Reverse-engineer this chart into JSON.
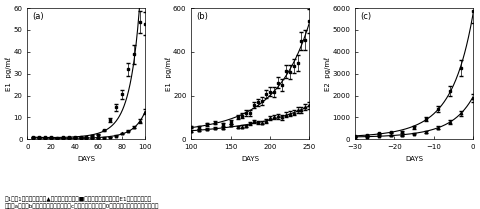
{
  "title_caption": "図1　単胎妊娠牛（▲）と双胎妊娠牛（■）の血中エストロン（E1）の濃度推移。",
  "caption2": "（a），（b）の横軸は娠娠日数　（c）の横軸は分娩日を0日とした分娩前の日数を示す。",
  "panel_a": {
    "label": "(a)",
    "xlabel": "DAYS",
    "ylabel": "E1  pg/mℓ",
    "xlim": [
      0,
      100
    ],
    "ylim": [
      0,
      60
    ],
    "xticks": [
      0,
      20,
      40,
      60,
      80,
      100
    ],
    "yticks": [
      0,
      10,
      20,
      30,
      40,
      50,
      60
    ],
    "twin_x": [
      5,
      10,
      15,
      20,
      25,
      30,
      35,
      40,
      45,
      50,
      55,
      60,
      65,
      70,
      75,
      80,
      85,
      90,
      95,
      100
    ],
    "twin_y": [
      1.0,
      1.0,
      0.8,
      0.9,
      0.8,
      0.9,
      0.8,
      1.0,
      1.0,
      1.0,
      1.5,
      2.0,
      4.0,
      8.0,
      14.0,
      22.0,
      31.0,
      42.0,
      50.0,
      53.0
    ],
    "single_x": [
      5,
      10,
      15,
      20,
      25,
      30,
      35,
      40,
      45,
      50,
      55,
      60,
      65,
      70,
      75,
      80,
      85,
      90,
      95,
      100
    ],
    "single_y": [
      0.5,
      0.5,
      0.5,
      0.5,
      0.5,
      0.5,
      0.5,
      0.5,
      0.5,
      0.5,
      0.5,
      0.7,
      0.8,
      1.0,
      1.5,
      2.5,
      4.0,
      6.0,
      9.0,
      12.0
    ]
  },
  "panel_b": {
    "label": "(b)",
    "xlabel": "DAYS",
    "ylabel": "E1  pg/mℓ",
    "xlim": [
      100,
      250
    ],
    "ylim": [
      0,
      600
    ],
    "xticks": [
      100,
      150,
      200,
      250
    ],
    "yticks": [
      0,
      200,
      400,
      600
    ],
    "twin_x": [
      100,
      110,
      120,
      130,
      140,
      150,
      160,
      165,
      170,
      175,
      180,
      185,
      190,
      195,
      200,
      205,
      210,
      215,
      220,
      225,
      230,
      235,
      240,
      245,
      250
    ],
    "twin_y": [
      55,
      60,
      65,
      70,
      80,
      90,
      100,
      110,
      120,
      130,
      145,
      160,
      175,
      190,
      210,
      230,
      250,
      270,
      290,
      310,
      340,
      370,
      410,
      460,
      560
    ],
    "single_x": [
      100,
      110,
      120,
      130,
      140,
      150,
      160,
      165,
      170,
      175,
      180,
      185,
      190,
      195,
      200,
      205,
      210,
      215,
      220,
      225,
      230,
      235,
      240,
      245,
      250
    ],
    "single_y": [
      40,
      42,
      45,
      48,
      50,
      55,
      58,
      60,
      65,
      70,
      75,
      78,
      82,
      88,
      92,
      95,
      100,
      105,
      110,
      115,
      120,
      125,
      130,
      140,
      155
    ]
  },
  "panel_c": {
    "label": "(c)",
    "xlabel": "DAYS",
    "ylabel": "E2  pg/mℓ",
    "xlim": [
      -30,
      0
    ],
    "ylim": [
      0,
      6000
    ],
    "xticks": [
      -30,
      -20,
      -10,
      0
    ],
    "yticks": [
      0,
      1000,
      2000,
      3000,
      4000,
      5000,
      6000
    ],
    "twin_x": [
      -30,
      -27,
      -24,
      -21,
      -18,
      -15,
      -12,
      -9,
      -6,
      -3,
      0
    ],
    "twin_y": [
      150,
      200,
      250,
      300,
      400,
      600,
      900,
      1400,
      2200,
      3500,
      5500
    ],
    "single_x": [
      -30,
      -27,
      -24,
      -21,
      -18,
      -15,
      -12,
      -9,
      -6,
      -3,
      0
    ],
    "single_y": [
      100,
      120,
      150,
      180,
      200,
      250,
      350,
      500,
      800,
      1200,
      2000
    ]
  },
  "color_line": "#000000",
  "bg_color": "#ffffff",
  "linewidth": 0.8,
  "fontsize_label": 5,
  "fontsize_tick": 5,
  "fontsize_panel": 6
}
